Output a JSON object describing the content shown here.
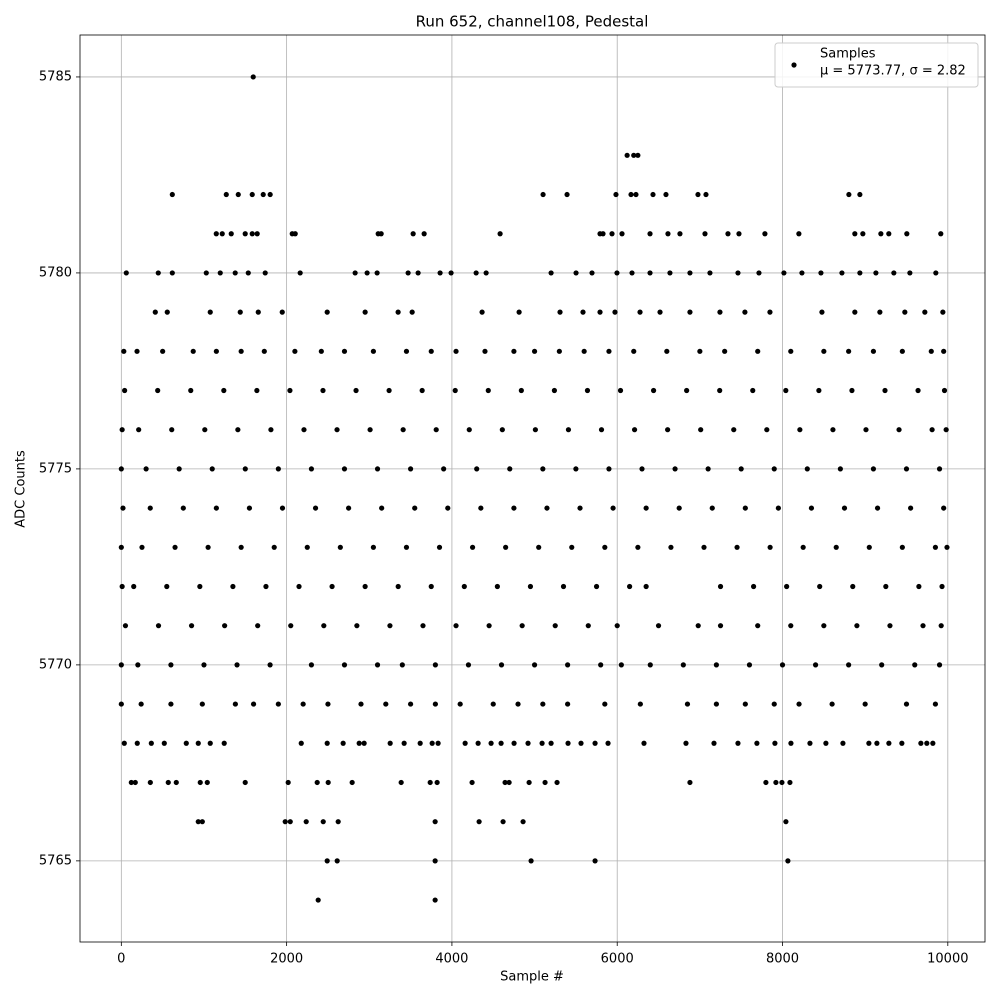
{
  "chart_data": {
    "type": "scatter",
    "title": "Run 652, channel108, Pedestal",
    "x_label": "Sample #",
    "y_label": "ADC Counts",
    "xlim": [
      -500,
      10450
    ],
    "ylim": [
      5762.93,
      5786.07
    ],
    "xticks": [
      0,
      2000,
      4000,
      6000,
      8000,
      10000
    ],
    "yticks": [
      5765,
      5770,
      5775,
      5780,
      5785
    ],
    "grid": true,
    "legend": "upper right",
    "legend_label": "μ = 5773.77, σ = 2.82",
    "series": [
      {
        "name": "Samples",
        "color": "#000000",
        "x": [
          1596,
          6120,
          6200,
          6250,
          617,
          1270,
          1415,
          1584,
          1717,
          1801,
          5103,
          5393,
          5985,
          6167,
          6227,
          6433,
          6590,
          6977,
          7074,
          8803,
          8936,
          1149,
          1221,
          1330,
          1499,
          1584,
          1644,
          2068,
          2104,
          3108,
          3144,
          3531,
          3664,
          4583,
          5937,
          5792,
          5828,
          6058,
          6397,
          6614,
          6759,
          7062,
          7340,
          7473,
          7787,
          8198,
          8875,
          8972,
          9190,
          9286,
          9504,
          9915,
          60,
          447,
          617,
          1028,
          1197,
          1378,
          1536,
          1741,
          2164,
          2829,
          2974,
          3095,
          3470,
          3591,
          3857,
          3990,
          4293,
          4414,
          5200,
          5502,
          5695,
          5997,
          6179,
          6397,
          6638,
          6880,
          7122,
          7461,
          7715,
          8017,
          8235,
          8465,
          8719,
          8936,
          9130,
          9347,
          9541,
          9855,
          411,
          556,
          1076,
          1439,
          1657,
          1947,
          2491,
          2950,
          3349,
          3519,
          4365,
          4813,
          5308,
          5586,
          5792,
          5973,
          6276,
          6518,
          6880,
          7243,
          7545,
          7848,
          8477,
          8875,
          9178,
          9480,
          9722,
          9940,
          30,
          190,
          500,
          870,
          1150,
          1450,
          1730,
          2100,
          2420,
          2700,
          3050,
          3450,
          3750,
          4050,
          4400,
          4750,
          5000,
          5300,
          5600,
          5900,
          6200,
          6600,
          7000,
          7300,
          7700,
          8100,
          8500,
          8800,
          9100,
          9450,
          9800,
          9950,
          40,
          440,
          840,
          1240,
          1640,
          2040,
          2440,
          2840,
          3240,
          3640,
          4040,
          4440,
          4840,
          5240,
          5640,
          6040,
          6440,
          6840,
          7240,
          7640,
          8040,
          8440,
          8840,
          9240,
          9640,
          9960,
          10,
          210,
          610,
          1010,
          1410,
          1810,
          2210,
          2610,
          3010,
          3410,
          3810,
          4210,
          4610,
          5010,
          5410,
          5810,
          6210,
          6610,
          7010,
          7410,
          7810,
          8210,
          8610,
          9010,
          9410,
          9810,
          9980,
          0,
          300,
          700,
          1100,
          1500,
          1900,
          2300,
          2700,
          3100,
          3500,
          3900,
          4300,
          4700,
          5100,
          5500,
          5900,
          6300,
          6700,
          7100,
          7500,
          7900,
          8300,
          8700,
          9100,
          9500,
          9900,
          20,
          350,
          750,
          1150,
          1550,
          1950,
          2350,
          2750,
          3150,
          3550,
          3950,
          4350,
          4750,
          5150,
          5550,
          5950,
          6350,
          6750,
          7150,
          7550,
          7950,
          8350,
          8750,
          9150,
          9550,
          9950,
          0,
          250,
          650,
          1050,
          1450,
          1850,
          2250,
          2650,
          3050,
          3450,
          3850,
          4250,
          4650,
          5050,
          5450,
          5850,
          6250,
          6650,
          7050,
          7450,
          7850,
          8250,
          8650,
          9050,
          9450,
          9850,
          9990,
          10,
          150,
          550,
          950,
          1350,
          1750,
          2150,
          2550,
          2950,
          3350,
          3750,
          4150,
          4550,
          4950,
          5350,
          5750,
          6150,
          6350,
          7250,
          7650,
          8050,
          8450,
          8850,
          9250,
          9650,
          9930,
          50,
          450,
          850,
          1250,
          1650,
          2050,
          2450,
          2850,
          3250,
          3650,
          4050,
          4450,
          4850,
          5250,
          5650,
          6000,
          6500,
          6980,
          7250,
          7700,
          8100,
          8500,
          8900,
          9300,
          9700,
          9920,
          0,
          200,
          600,
          1000,
          1400,
          1800,
          2300,
          2700,
          3100,
          3400,
          3800,
          4200,
          4600,
          5000,
          5400,
          5800,
          6050,
          6400,
          6800,
          7200,
          7600,
          8000,
          8400,
          8800,
          9200,
          9600,
          9900,
          0,
          240,
          600,
          980,
          1380,
          1600,
          1900,
          2200,
          2500,
          2900,
          3200,
          3500,
          3800,
          4100,
          4500,
          4800,
          5100,
          5400,
          5850,
          6280,
          6850,
          7200,
          7550,
          7900,
          8200,
          8600,
          9000,
          9500,
          9850,
          36,
          193,
          363,
          520,
          786,
          931,
          1076,
          1245,
          2177,
          2491,
          2684,
          2878,
          2938,
          3253,
          3422,
          3616,
          3761,
          3833,
          4160,
          4317,
          4474,
          4595,
          4752,
          4921,
          5091,
          5200,
          5405,
          5562,
          5732,
          5889,
          6324,
          6832,
          7171,
          7461,
          7690,
          7908,
          8102,
          8332,
          8525,
          8731,
          9045,
          9142,
          9287,
          9444,
          9674,
          9746,
          9819,
          121,
          169,
          351,
          568,
          665,
          955,
          1040,
          1499,
          2019,
          2370,
          2503,
          2793,
          3386,
          3737,
          3821,
          4244,
          4643,
          4692,
          4934,
          5127,
          5272,
          6880,
          7799,
          7920,
          7993,
          8090,
          931,
          980,
          1983,
          2044,
          2237,
          2443,
          2624,
          3797,
          4329,
          4619,
          4861,
          8041,
          2491,
          2612,
          3797,
          4958,
          5732,
          8065,
          2382,
          3797
        ],
        "values": [
          5785,
          5783,
          5783,
          5783,
          5782,
          5782,
          5782,
          5782,
          5782,
          5782,
          5782,
          5782,
          5782,
          5782,
          5782,
          5782,
          5782,
          5782,
          5782,
          5782,
          5782,
          5781,
          5781,
          5781,
          5781,
          5781,
          5781,
          5781,
          5781,
          5781,
          5781,
          5781,
          5781,
          5781,
          5781,
          5781,
          5781,
          5781,
          5781,
          5781,
          5781,
          5781,
          5781,
          5781,
          5781,
          5781,
          5781,
          5781,
          5781,
          5781,
          5781,
          5781,
          5780,
          5780,
          5780,
          5780,
          5780,
          5780,
          5780,
          5780,
          5780,
          5780,
          5780,
          5780,
          5780,
          5780,
          5780,
          5780,
          5780,
          5780,
          5780,
          5780,
          5780,
          5780,
          5780,
          5780,
          5780,
          5780,
          5780,
          5780,
          5780,
          5780,
          5780,
          5780,
          5780,
          5780,
          5780,
          5780,
          5780,
          5780,
          5779,
          5779,
          5779,
          5779,
          5779,
          5779,
          5779,
          5779,
          5779,
          5779,
          5779,
          5779,
          5779,
          5779,
          5779,
          5779,
          5779,
          5779,
          5779,
          5779,
          5779,
          5779,
          5779,
          5779,
          5779,
          5779,
          5779,
          5779,
          5778,
          5778,
          5778,
          5778,
          5778,
          5778,
          5778,
          5778,
          5778,
          5778,
          5778,
          5778,
          5778,
          5778,
          5778,
          5778,
          5778,
          5778,
          5778,
          5778,
          5778,
          5778,
          5778,
          5778,
          5778,
          5778,
          5778,
          5778,
          5778,
          5778,
          5778,
          5778,
          5777,
          5777,
          5777,
          5777,
          5777,
          5777,
          5777,
          5777,
          5777,
          5777,
          5777,
          5777,
          5777,
          5777,
          5777,
          5777,
          5777,
          5777,
          5777,
          5777,
          5777,
          5777,
          5777,
          5777,
          5777,
          5777,
          5776,
          5776,
          5776,
          5776,
          5776,
          5776,
          5776,
          5776,
          5776,
          5776,
          5776,
          5776,
          5776,
          5776,
          5776,
          5776,
          5776,
          5776,
          5776,
          5776,
          5776,
          5776,
          5776,
          5776,
          5776,
          5776,
          5776,
          5775,
          5775,
          5775,
          5775,
          5775,
          5775,
          5775,
          5775,
          5775,
          5775,
          5775,
          5775,
          5775,
          5775,
          5775,
          5775,
          5775,
          5775,
          5775,
          5775,
          5775,
          5775,
          5775,
          5775,
          5775,
          5775,
          5774,
          5774,
          5774,
          5774,
          5774,
          5774,
          5774,
          5774,
          5774,
          5774,
          5774,
          5774,
          5774,
          5774,
          5774,
          5774,
          5774,
          5774,
          5774,
          5774,
          5774,
          5774,
          5774,
          5774,
          5774,
          5774,
          5773,
          5773,
          5773,
          5773,
          5773,
          5773,
          5773,
          5773,
          5773,
          5773,
          5773,
          5773,
          5773,
          5773,
          5773,
          5773,
          5773,
          5773,
          5773,
          5773,
          5773,
          5773,
          5773,
          5773,
          5773,
          5773,
          5773,
          5772,
          5772,
          5772,
          5772,
          5772,
          5772,
          5772,
          5772,
          5772,
          5772,
          5772,
          5772,
          5772,
          5772,
          5772,
          5772,
          5772,
          5772,
          5772,
          5772,
          5772,
          5772,
          5772,
          5772,
          5772,
          5772,
          5771,
          5771,
          5771,
          5771,
          5771,
          5771,
          5771,
          5771,
          5771,
          5771,
          5771,
          5771,
          5771,
          5771,
          5771,
          5771,
          5771,
          5771,
          5771,
          5771,
          5771,
          5771,
          5771,
          5771,
          5771,
          5771,
          5770,
          5770,
          5770,
          5770,
          5770,
          5770,
          5770,
          5770,
          5770,
          5770,
          5770,
          5770,
          5770,
          5770,
          5770,
          5770,
          5770,
          5770,
          5770,
          5770,
          5770,
          5770,
          5770,
          5770,
          5770,
          5770,
          5770,
          5769,
          5769,
          5769,
          5769,
          5769,
          5769,
          5769,
          5769,
          5769,
          5769,
          5769,
          5769,
          5769,
          5769,
          5769,
          5769,
          5769,
          5769,
          5769,
          5769,
          5769,
          5769,
          5769,
          5769,
          5769,
          5769,
          5769,
          5769,
          5769,
          5768,
          5768,
          5768,
          5768,
          5768,
          5768,
          5768,
          5768,
          5768,
          5768,
          5768,
          5768,
          5768,
          5768,
          5768,
          5768,
          5768,
          5768,
          5768,
          5768,
          5768,
          5768,
          5768,
          5768,
          5768,
          5768,
          5768,
          5768,
          5768,
          5768,
          5768,
          5768,
          5768,
          5768,
          5768,
          5768,
          5768,
          5768,
          5768,
          5768,
          5768,
          5768,
          5768,
          5768,
          5768,
          5768,
          5768,
          5767,
          5767,
          5767,
          5767,
          5767,
          5767,
          5767,
          5767,
          5767,
          5767,
          5767,
          5767,
          5767,
          5767,
          5767,
          5767,
          5767,
          5767,
          5767,
          5767,
          5767,
          5767,
          5767,
          5767,
          5767,
          5767,
          5766,
          5766,
          5766,
          5766,
          5766,
          5766,
          5766,
          5766,
          5766,
          5766,
          5766,
          5766,
          5765,
          5765,
          5765,
          5765,
          5765,
          5765,
          5764,
          5764
        ]
      }
    ]
  }
}
